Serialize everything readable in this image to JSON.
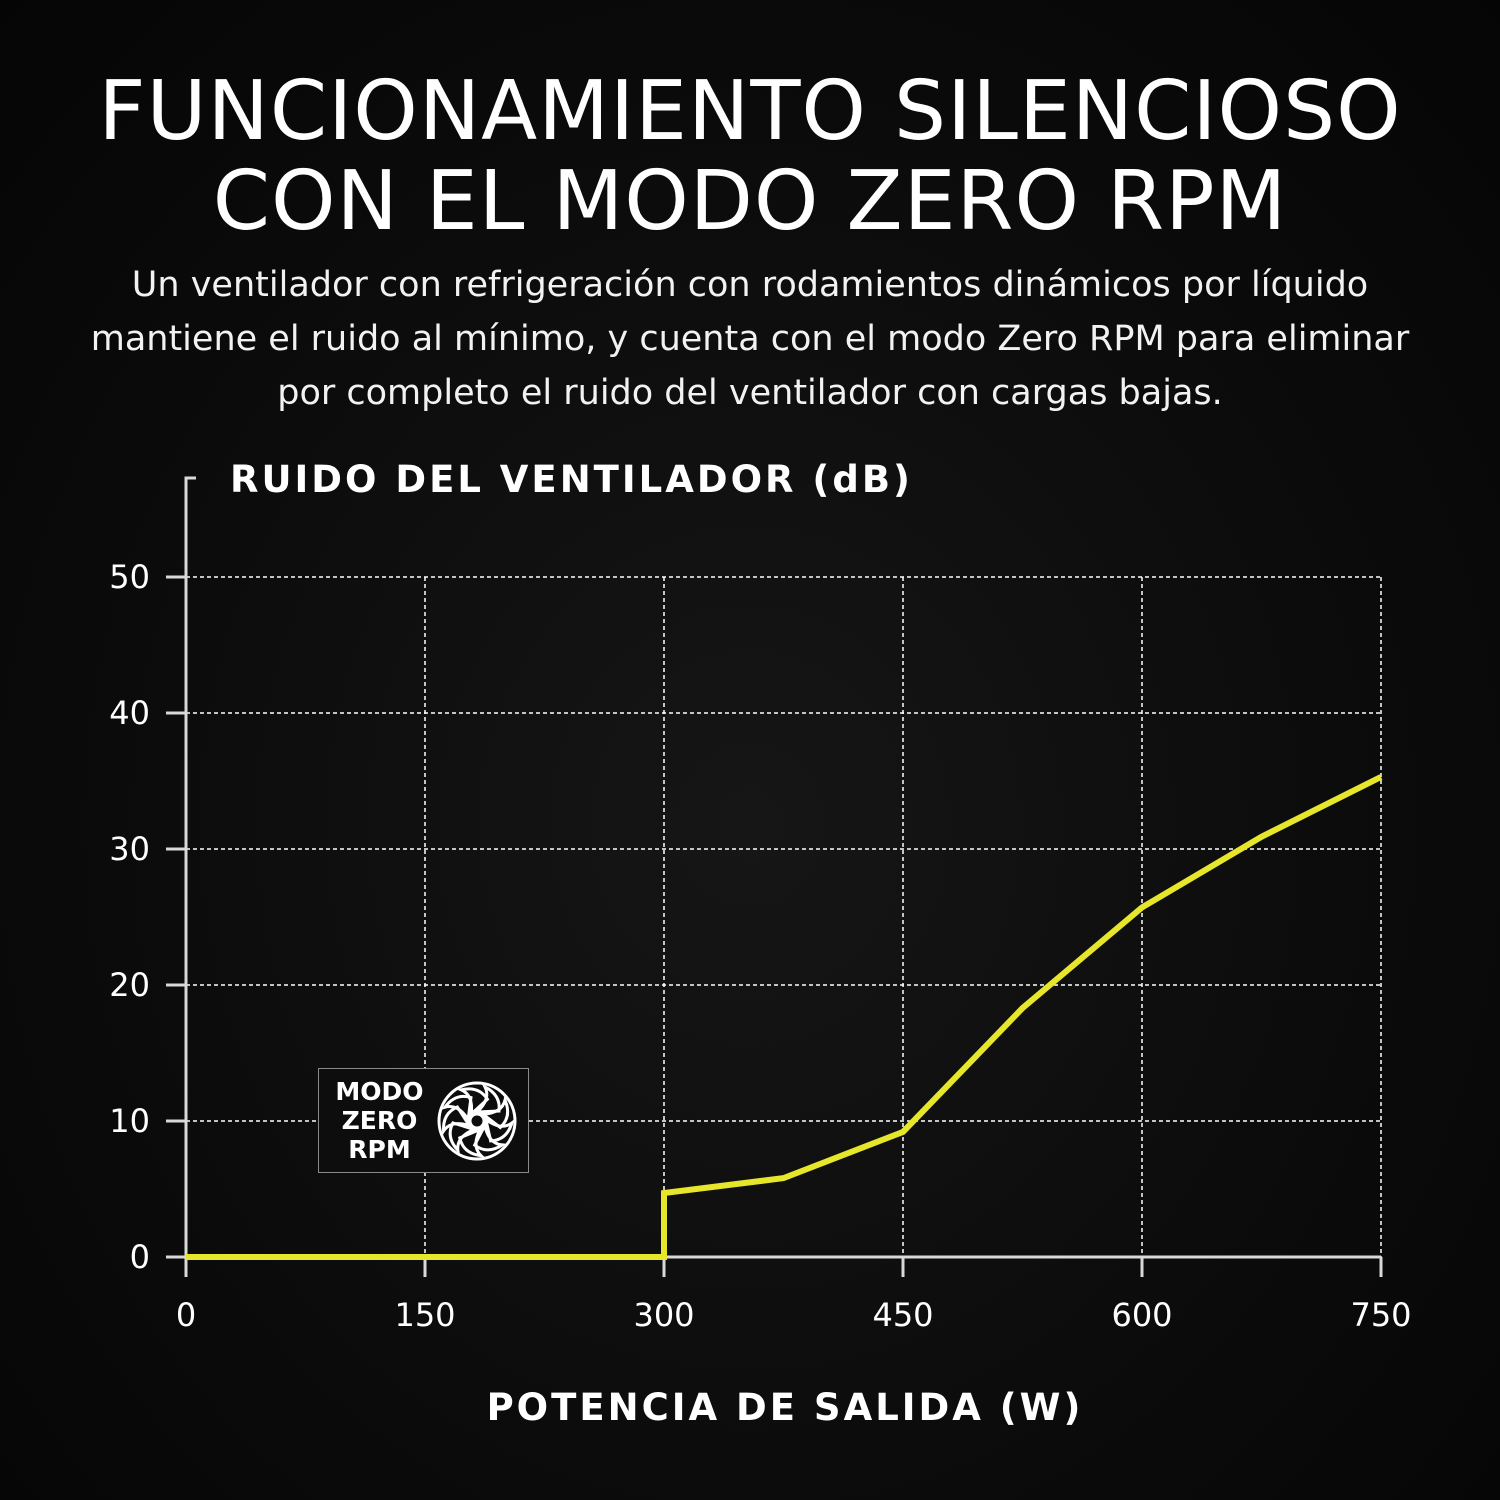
{
  "header": {
    "title_line1": "FUNCIONAMIENTO SILENCIOSO",
    "title_line2": "CON EL MODO ZERO RPM",
    "subtitle": "Un ventilador con refrigeración con rodamientos dinámicos por líquido mantiene el ruido al mínimo, y cuenta con el modo Zero RPM para eliminar por completo el ruido del ventilador con cargas bajas."
  },
  "badge": {
    "line1": "MODO",
    "line2": "ZERO",
    "line3": "RPM",
    "icon": "fan-icon"
  },
  "colors": {
    "line": "#e6e62a",
    "grid": "#ffffff",
    "axis": "#d9d9d9",
    "background": "#0a0a0a"
  },
  "chart_data": {
    "type": "line",
    "title": "",
    "xlabel": "POTENCIA DE SALIDA (W)",
    "ylabel": "RUIDO DEL VENTILADOR (dB)",
    "xlim": [
      0,
      750
    ],
    "ylim": [
      0,
      50
    ],
    "xticks": [
      "0",
      "150",
      "300",
      "450",
      "600",
      "750"
    ],
    "yticks": [
      "0",
      "10",
      "20",
      "30",
      "40",
      "50"
    ],
    "grid": true,
    "series": [
      {
        "x": [
          0,
          300,
          300,
          375,
          450,
          525,
          600,
          675,
          750
        ],
        "y": [
          0,
          0,
          4.7,
          5.8,
          9.2,
          18.3,
          25.7,
          30.9,
          35.3
        ]
      }
    ]
  }
}
